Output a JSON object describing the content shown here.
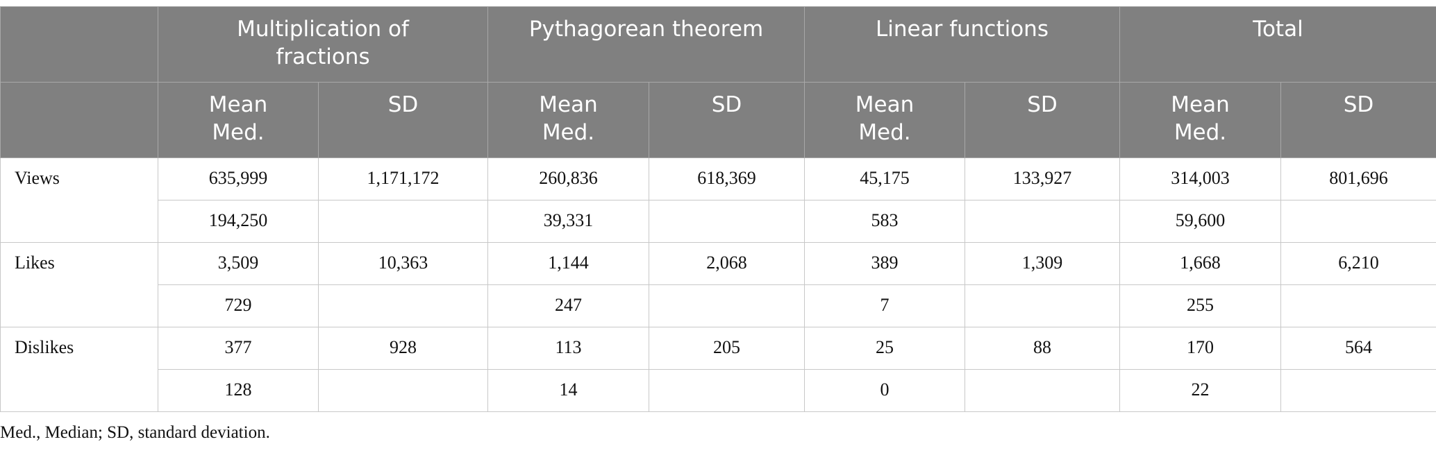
{
  "table": {
    "groups": [
      "Multiplication of fractions",
      "Pythagorean theorem",
      "Linear functions",
      "Total"
    ],
    "subheaders": [
      "Mean Med.",
      "SD"
    ],
    "rows": [
      {
        "label": "Views",
        "mean_sd": [
          "635,999",
          "1,171,172",
          "260,836",
          "618,369",
          "45,175",
          "133,927",
          "314,003",
          "801,696"
        ],
        "median": [
          "194,250",
          "39,331",
          "583",
          "59,600"
        ]
      },
      {
        "label": "Likes",
        "mean_sd": [
          "3,509",
          "10,363",
          "1,144",
          "2,068",
          "389",
          "1,309",
          "1,668",
          "6,210"
        ],
        "median": [
          "729",
          "247",
          "7",
          "255"
        ]
      },
      {
        "label": "Dislikes",
        "mean_sd": [
          "377",
          "928",
          "113",
          "205",
          "25",
          "88",
          "170",
          "564"
        ],
        "median": [
          "128",
          "14",
          "0",
          "22"
        ]
      }
    ]
  },
  "footnote": "Med., Median; SD, standard deviation."
}
